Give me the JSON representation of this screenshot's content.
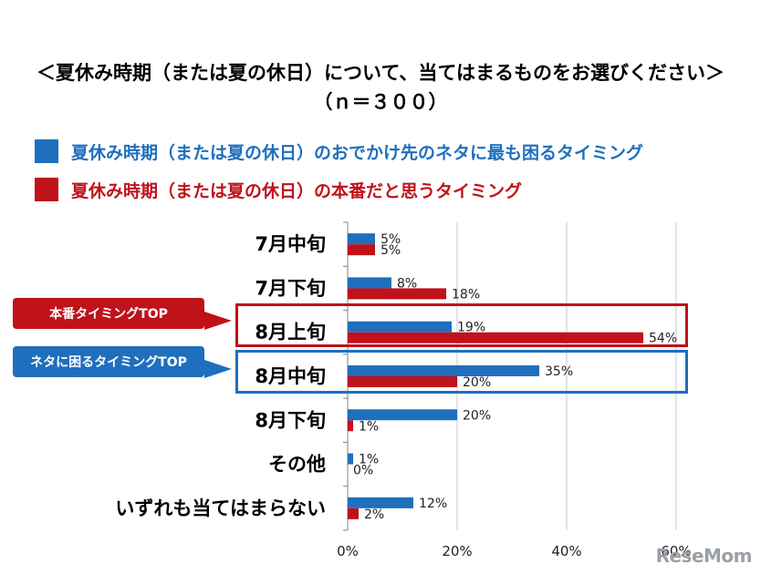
{
  "title": {
    "line1": "＜夏休み時期（または夏の休日）について、当てはまるものをお選びください＞",
    "line2": "（ｎ＝３００）"
  },
  "legend": [
    {
      "label": "夏休み時期（または夏の休日）のおでかけ先のネタに最も困るタイミング",
      "color": "#1f6fbd",
      "text_color": "#1f6fbd"
    },
    {
      "label": "夏休み時期（または夏の休日）の本番だと思うタイミング",
      "color": "#c0121b",
      "text_color": "#c0121b"
    }
  ],
  "callouts": {
    "red": {
      "label": "本番タイミングTOP",
      "color": "#c0121b"
    },
    "blue": {
      "label": "ネタに困るタイミングTOP",
      "color": "#1f6fbd"
    }
  },
  "watermark": "ReseMom",
  "chart_data": {
    "type": "bar",
    "orientation": "horizontal",
    "categories": [
      "7月中旬",
      "7月下旬",
      "8月上旬",
      "8月中旬",
      "8月下旬",
      "その他",
      "いずれも当てはまらない"
    ],
    "series": [
      {
        "name": "夏休み時期（または夏の休日）のおでかけ先のネタに最も困るタイミング",
        "values": [
          5,
          8,
          19,
          35,
          20,
          1,
          12
        ],
        "color": "#1f6fbd"
      },
      {
        "name": "夏休み時期（または夏の休日）の本番だと思うタイミング",
        "values": [
          5,
          18,
          54,
          20,
          1,
          0,
          2
        ],
        "color": "#c0121b"
      }
    ],
    "value_labels": [
      [
        "5%",
        "8%",
        "19%",
        "35%",
        "20%",
        "1%",
        "12%"
      ],
      [
        "5%",
        "18%",
        "54%",
        "20%",
        "1%",
        "0%",
        "2%"
      ]
    ],
    "xlim": [
      0,
      60
    ],
    "xticks": [
      0,
      20,
      40,
      60
    ],
    "xtick_labels": [
      "0%",
      "20%",
      "40%",
      "60%"
    ],
    "grid": true
  }
}
